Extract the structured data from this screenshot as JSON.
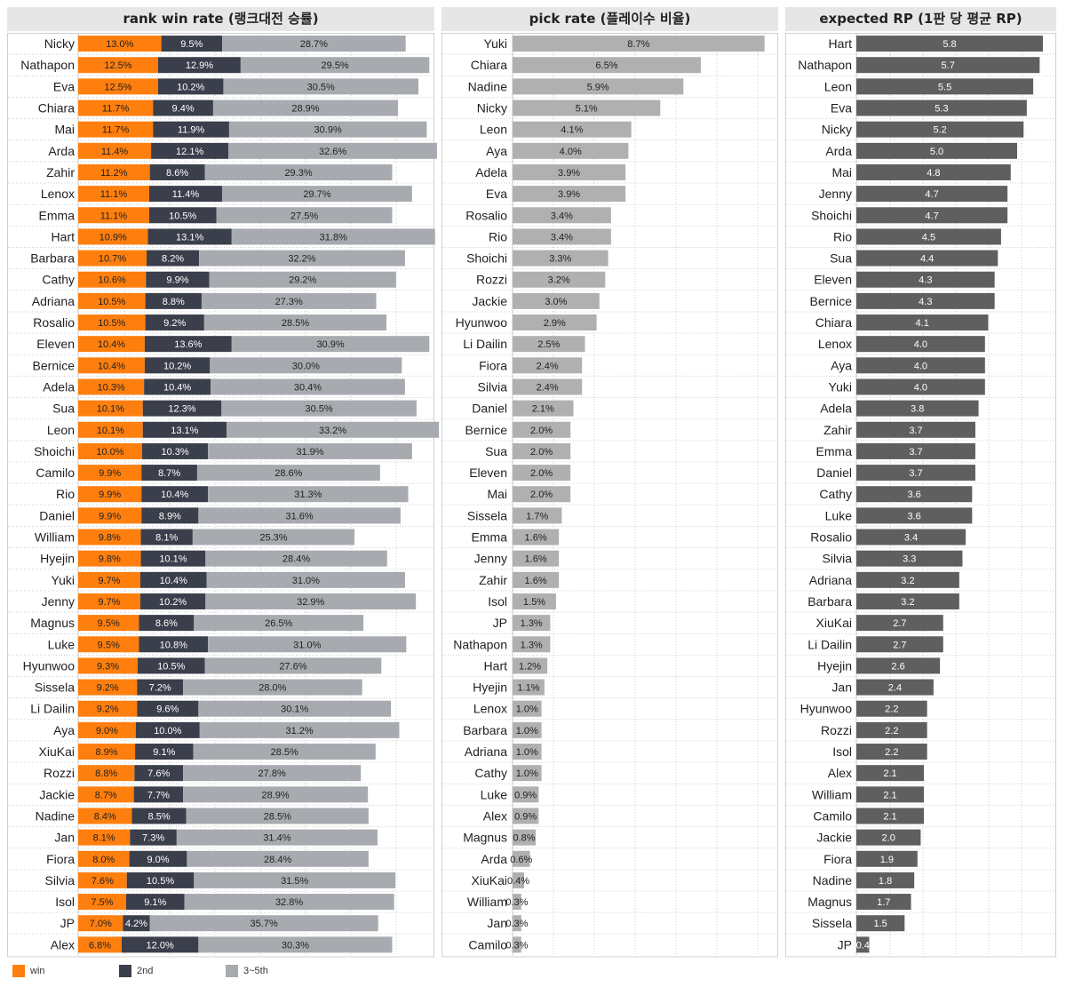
{
  "panels": {
    "rank_title": "rank win rate (랭크대전 승률)",
    "pick_title": "pick rate (플레이수 비율)",
    "rp_title": "expected RP (1판 당 평균 RP)"
  },
  "legend": {
    "win": "win",
    "second": "2nd",
    "third_fifth": "3~5th"
  },
  "colors": {
    "win": "#ff7f0e",
    "second": "#3b3f4b",
    "third_fifth": "#a7abb0",
    "pick": "#b0b0b0",
    "rp": "#5f5f5f",
    "header_bg": "#e6e6e6"
  },
  "chart_data": [
    {
      "type": "bar",
      "orientation": "horizontal",
      "stacked": true,
      "title": "rank win rate (랭크대전 승률)",
      "value_format": "percent",
      "categories": [
        "Nicky",
        "Nathapon",
        "Eva",
        "Chiara",
        "Mai",
        "Arda",
        "Zahir",
        "Lenox",
        "Emma",
        "Hart",
        "Barbara",
        "Cathy",
        "Adriana",
        "Rosalio",
        "Eleven",
        "Bernice",
        "Adela",
        "Sua",
        "Leon",
        "Shoichi",
        "Camilo",
        "Rio",
        "Daniel",
        "William",
        "Hyejin",
        "Yuki",
        "Jenny",
        "Magnus",
        "Luke",
        "Hyunwoo",
        "Sissela",
        "Li Dailin",
        "Aya",
        "XiuKai",
        "Rozzi",
        "Jackie",
        "Nadine",
        "Jan",
        "Fiora",
        "Silvia",
        "Isol",
        "JP",
        "Alex"
      ],
      "series": [
        {
          "name": "win",
          "values": [
            13.0,
            12.5,
            12.5,
            11.7,
            11.7,
            11.4,
            11.2,
            11.1,
            11.1,
            10.9,
            10.7,
            10.6,
            10.5,
            10.5,
            10.4,
            10.4,
            10.3,
            10.1,
            10.1,
            10.0,
            9.9,
            9.9,
            9.9,
            9.8,
            9.8,
            9.7,
            9.7,
            9.5,
            9.5,
            9.3,
            9.2,
            9.2,
            9.0,
            8.9,
            8.8,
            8.7,
            8.4,
            8.1,
            8.0,
            7.6,
            7.5,
            7.0,
            6.8
          ]
        },
        {
          "name": "2nd",
          "values": [
            9.5,
            12.9,
            10.2,
            9.4,
            11.9,
            12.1,
            8.6,
            11.4,
            10.5,
            13.1,
            8.2,
            9.9,
            8.8,
            9.2,
            13.6,
            10.2,
            10.4,
            12.3,
            13.1,
            10.3,
            8.7,
            10.4,
            8.9,
            8.1,
            10.1,
            10.4,
            10.2,
            8.6,
            10.8,
            10.5,
            7.2,
            9.6,
            10.0,
            9.1,
            7.6,
            7.7,
            8.5,
            7.3,
            9.0,
            10.5,
            9.1,
            4.2,
            12.0
          ]
        },
        {
          "name": "3~5th",
          "values": [
            28.7,
            29.5,
            30.5,
            28.9,
            30.9,
            32.6,
            29.3,
            29.7,
            27.5,
            31.8,
            32.2,
            29.2,
            27.3,
            28.5,
            30.9,
            30.0,
            30.4,
            30.5,
            33.2,
            31.9,
            28.6,
            31.3,
            31.6,
            25.3,
            28.4,
            31.0,
            32.9,
            26.5,
            31.0,
            27.6,
            28.0,
            30.1,
            31.2,
            28.5,
            27.8,
            28.9,
            28.5,
            31.4,
            28.4,
            31.5,
            32.8,
            35.7,
            30.3
          ]
        }
      ],
      "legend_position": "bottom-left",
      "grid": true
    },
    {
      "type": "bar",
      "orientation": "horizontal",
      "title": "pick rate (플레이수 비율)",
      "value_format": "percent",
      "categories": [
        "Yuki",
        "Chiara",
        "Nadine",
        "Nicky",
        "Leon",
        "Aya",
        "Adela",
        "Eva",
        "Rosalio",
        "Rio",
        "Shoichi",
        "Rozzi",
        "Jackie",
        "Hyunwoo",
        "Li Dailin",
        "Fiora",
        "Silvia",
        "Daniel",
        "Bernice",
        "Sua",
        "Eleven",
        "Mai",
        "Sissela",
        "Emma",
        "Jenny",
        "Zahir",
        "Isol",
        "JP",
        "Nathapon",
        "Hart",
        "Hyejin",
        "Lenox",
        "Barbara",
        "Adriana",
        "Cathy",
        "Luke",
        "Alex",
        "Magnus",
        "Arda",
        "XiuKai",
        "William",
        "Jan",
        "Camilo"
      ],
      "values": [
        8.7,
        6.5,
        5.9,
        5.1,
        4.1,
        4.0,
        3.9,
        3.9,
        3.4,
        3.4,
        3.3,
        3.2,
        3.0,
        2.9,
        2.5,
        2.4,
        2.4,
        2.1,
        2.0,
        2.0,
        2.0,
        2.0,
        1.7,
        1.6,
        1.6,
        1.6,
        1.5,
        1.3,
        1.3,
        1.2,
        1.1,
        1.0,
        1.0,
        1.0,
        1.0,
        0.9,
        0.9,
        0.8,
        0.6,
        0.4,
        0.3,
        0.3,
        0.3
      ],
      "grid": true
    },
    {
      "type": "bar",
      "orientation": "horizontal",
      "title": "expected RP (1판 당 평균 RP)",
      "value_format": "number",
      "categories": [
        "Hart",
        "Nathapon",
        "Leon",
        "Eva",
        "Nicky",
        "Arda",
        "Mai",
        "Jenny",
        "Shoichi",
        "Rio",
        "Sua",
        "Eleven",
        "Bernice",
        "Chiara",
        "Lenox",
        "Aya",
        "Yuki",
        "Adela",
        "Zahir",
        "Emma",
        "Daniel",
        "Cathy",
        "Luke",
        "Rosalio",
        "Silvia",
        "Adriana",
        "Barbara",
        "XiuKai",
        "Li Dailin",
        "Hyejin",
        "Jan",
        "Hyunwoo",
        "Rozzi",
        "Isol",
        "Alex",
        "William",
        "Camilo",
        "Jackie",
        "Fiora",
        "Nadine",
        "Magnus",
        "Sissela",
        "JP"
      ],
      "values": [
        5.8,
        5.7,
        5.5,
        5.3,
        5.2,
        5.0,
        4.8,
        4.7,
        4.7,
        4.5,
        4.4,
        4.3,
        4.3,
        4.1,
        4.0,
        4.0,
        4.0,
        3.8,
        3.7,
        3.7,
        3.7,
        3.6,
        3.6,
        3.4,
        3.3,
        3.2,
        3.2,
        2.7,
        2.7,
        2.6,
        2.4,
        2.2,
        2.2,
        2.2,
        2.1,
        2.1,
        2.1,
        2.0,
        1.9,
        1.8,
        1.7,
        1.5,
        0.4
      ],
      "grid": true
    }
  ]
}
